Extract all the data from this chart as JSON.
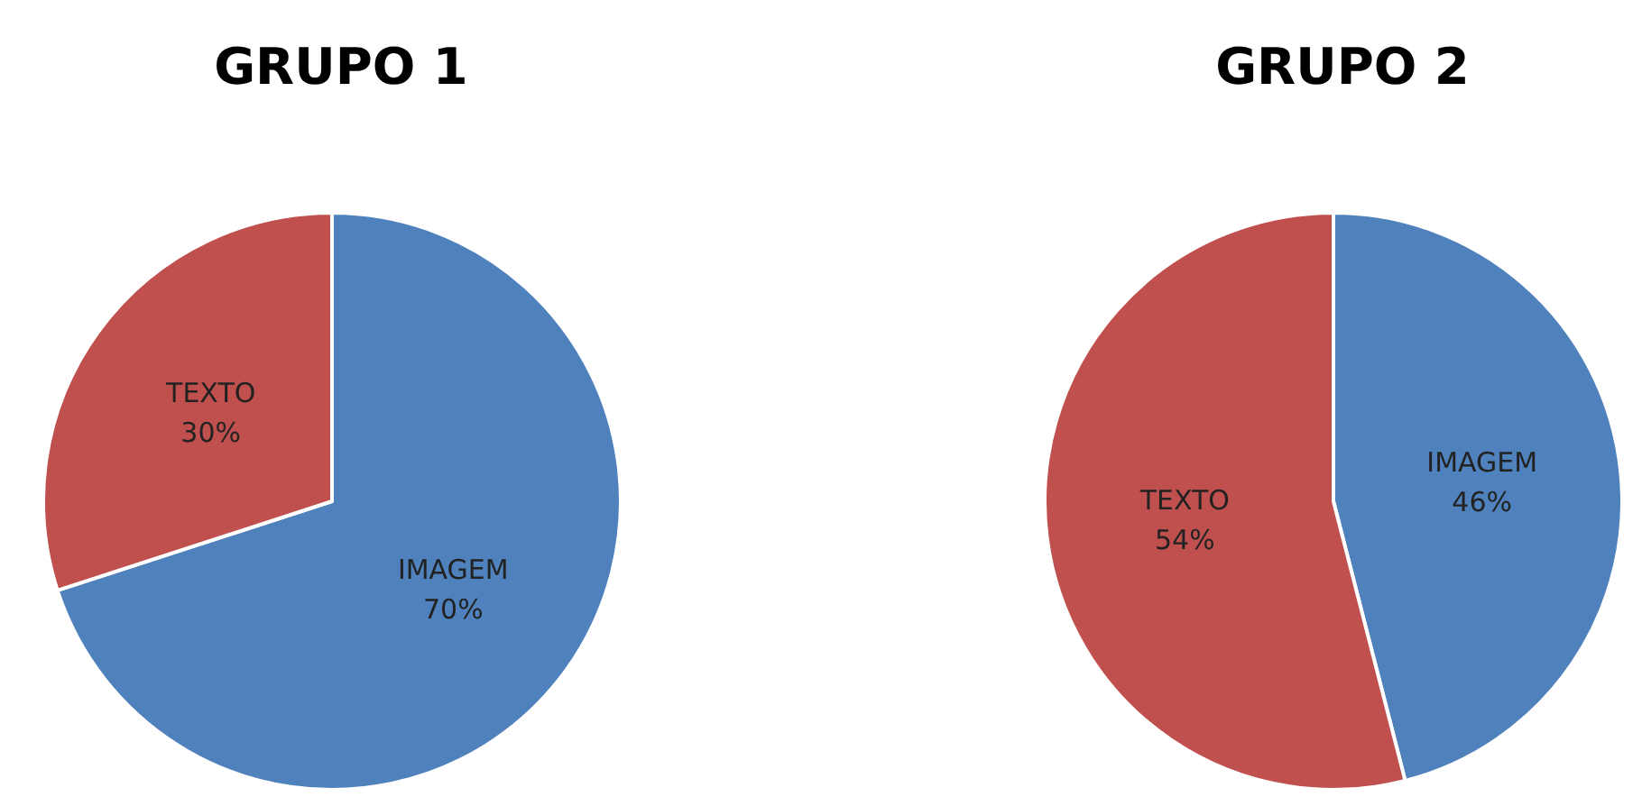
{
  "chart_data": [
    {
      "type": "pie",
      "title": "GRUPO 1",
      "categories": [
        "IMAGEM",
        "TEXTO"
      ],
      "values": [
        70,
        30
      ],
      "colors": [
        "#4f81bd",
        "#c0504d"
      ],
      "value_labels": [
        "70%",
        "30%"
      ],
      "legend": false
    },
    {
      "type": "pie",
      "title": "GRUPO 2",
      "categories": [
        "IMAGEM",
        "TEXTO"
      ],
      "values": [
        46,
        54
      ],
      "colors": [
        "#4f81bd",
        "#c0504d"
      ],
      "value_labels": [
        "46%",
        "54%"
      ],
      "legend": false
    }
  ]
}
